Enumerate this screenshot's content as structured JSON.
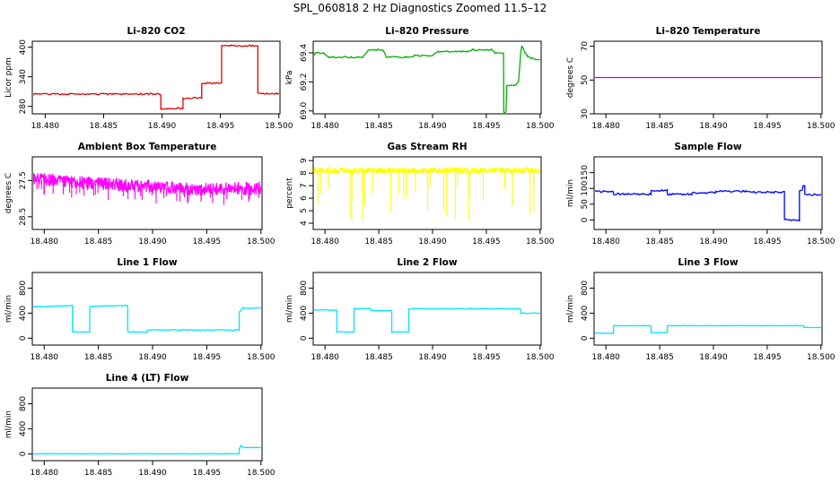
{
  "figure_title": "SPL_060818  2 Hz Diagnostics Zoomed 11.5–12",
  "chart_data": [
    {
      "type": "line",
      "title": "Li–820 CO2",
      "ylabel": "Licor ppm",
      "xlim": [
        18.4789,
        18.5001
      ],
      "ylim": [
        265,
        412
      ],
      "yticks": [
        280,
        340,
        400
      ],
      "color": "#e00000",
      "noise": 1.5,
      "seed": 1,
      "x": [
        18.4789,
        18.4899,
        18.4899,
        18.4918,
        18.4918,
        18.4934,
        18.4934,
        18.4951,
        18.4951,
        18.4982,
        18.4982,
        18.5
      ],
      "y": [
        305,
        305,
        276,
        276,
        297,
        297,
        327,
        327,
        403,
        403,
        306,
        306
      ]
    },
    {
      "type": "line",
      "title": "Li–820 Pressure",
      "ylabel": "kPa",
      "xlim": [
        18.4789,
        18.5001
      ],
      "ylim": [
        68.98,
        69.48
      ],
      "yticks": [
        69.0,
        69.2,
        69.4
      ],
      "tick_decimals": 1,
      "color": "#00b000",
      "noise": 0.005,
      "seed": 2,
      "x": [
        18.4789,
        18.4791,
        18.4799,
        18.4803,
        18.4835,
        18.484,
        18.4854,
        18.4857,
        18.4875,
        18.4883,
        18.49,
        18.4905,
        18.4933,
        18.4937,
        18.4955,
        18.4958,
        18.4966,
        18.49663,
        18.49683,
        18.4969,
        18.4978,
        18.498,
        18.4982,
        18.4983,
        18.4986,
        18.4988,
        18.4992,
        18.5
      ],
      "y": [
        69.38,
        69.4,
        69.4,
        69.37,
        69.37,
        69.42,
        69.42,
        69.37,
        69.37,
        69.38,
        69.38,
        69.41,
        69.41,
        69.42,
        69.42,
        69.4,
        69.4,
        68.99,
        68.99,
        69.17,
        69.18,
        69.2,
        69.4,
        69.45,
        69.4,
        69.38,
        69.36,
        69.35
      ]
    },
    {
      "type": "line",
      "title": "Li–820 Temperature",
      "ylabel": "degrees C",
      "xlim": [
        18.4789,
        18.5001
      ],
      "ylim": [
        30,
        73
      ],
      "yticks": [
        30,
        50,
        70
      ],
      "color": "#d000d0",
      "noise": 0,
      "seed": 3,
      "x": [
        18.4789,
        18.5
      ],
      "y": [
        51.5,
        51.5
      ]
    },
    {
      "type": "noisy",
      "title": "Ambient Box Temperature",
      "ylabel": "degrees C",
      "xlim": [
        18.4789,
        18.5001
      ],
      "ylim": [
        28.85,
        26.85
      ],
      "yticks": [
        27.5,
        28.5
      ],
      "tick_decimals": 1,
      "color": "#ff00ff",
      "noise": 0.18,
      "seed": 4,
      "spike_amp": 0.45,
      "spike_dir": 1,
      "spike_count": 50,
      "x": [
        18.4789,
        18.486,
        18.494,
        18.5
      ],
      "y": [
        27.45,
        27.6,
        27.75,
        27.7
      ]
    },
    {
      "type": "noisy",
      "title": "Gas Stream RH",
      "ylabel": "percent",
      "xlim": [
        18.4789,
        18.5001
      ],
      "ylim": [
        3.5,
        9.3
      ],
      "yticks": [
        4,
        5,
        6,
        7,
        8,
        9
      ],
      "color": "#ffff00",
      "noise": 0.25,
      "seed": 5,
      "spike_amp": 4.0,
      "spike_dir": -1,
      "spike_count": 30,
      "x": [
        18.4789,
        18.5
      ],
      "y": [
        8.2,
        8.2
      ]
    },
    {
      "type": "line",
      "title": "Sample Flow",
      "ylabel": "ml/min",
      "xlim": [
        18.4789,
        18.5001
      ],
      "ylim": [
        -30,
        200
      ],
      "yticks": [
        0,
        50,
        100,
        150
      ],
      "color": "#0000ff",
      "noise": 3,
      "seed": 6,
      "x": [
        18.4789,
        18.4807,
        18.4807,
        18.4842,
        18.4842,
        18.4857,
        18.4857,
        18.488,
        18.488,
        18.4902,
        18.4902,
        18.493,
        18.493,
        18.4966,
        18.4966,
        18.498,
        18.498,
        18.4983,
        18.4983,
        18.4985,
        18.4985,
        18.5
      ],
      "y": [
        90,
        90,
        82,
        82,
        93,
        93,
        81,
        81,
        86,
        86,
        91,
        91,
        88,
        88,
        0,
        0,
        95,
        95,
        108,
        108,
        80,
        80
      ]
    },
    {
      "type": "line",
      "title": "Line 1 Flow",
      "ylabel": "ml/min",
      "xlim": [
        18.4789,
        18.5001
      ],
      "ylim": [
        -110,
        1050
      ],
      "yticks": [
        0,
        400,
        800
      ],
      "color": "#00e5ff",
      "noise": 8,
      "seed": 7,
      "x": [
        18.4789,
        18.4826,
        18.4826,
        18.4842,
        18.4842,
        18.4877,
        18.4877,
        18.4895,
        18.4895,
        18.498,
        18.498,
        18.4983,
        18.5
      ],
      "y": [
        500,
        520,
        100,
        100,
        510,
        520,
        100,
        100,
        130,
        130,
        420,
        480,
        480
      ]
    },
    {
      "type": "line",
      "title": "Line 2 Flow",
      "ylabel": "ml/min",
      "xlim": [
        18.4789,
        18.5001
      ],
      "ylim": [
        -110,
        1050
      ],
      "yticks": [
        0,
        400,
        800
      ],
      "color": "#00e5ff",
      "noise": 6,
      "seed": 8,
      "x": [
        18.4789,
        18.4811,
        18.4811,
        18.4827,
        18.4827,
        18.4843,
        18.4843,
        18.4862,
        18.4862,
        18.4878,
        18.4878,
        18.4982,
        18.4982,
        18.5
      ],
      "y": [
        450,
        450,
        100,
        100,
        470,
        470,
        440,
        440,
        100,
        100,
        470,
        470,
        400,
        400
      ]
    },
    {
      "type": "line",
      "title": "Line 3 Flow",
      "ylabel": "ml/min",
      "xlim": [
        18.4789,
        18.5001
      ],
      "ylim": [
        -110,
        1050
      ],
      "yticks": [
        0,
        400,
        800
      ],
      "color": "#00e5ff",
      "noise": 3,
      "seed": 9,
      "x": [
        18.4789,
        18.4807,
        18.4807,
        18.4842,
        18.4842,
        18.4857,
        18.4857,
        18.4984,
        18.4984,
        18.5
      ],
      "y": [
        80,
        80,
        200,
        200,
        90,
        90,
        200,
        200,
        170,
        170
      ]
    },
    {
      "type": "line",
      "title": "Line 4 (LT) Flow",
      "ylabel": "ml/min",
      "xlim": [
        18.4789,
        18.5001
      ],
      "ylim": [
        -110,
        1050
      ],
      "yticks": [
        0,
        400,
        800
      ],
      "color": "#00e5ff",
      "noise": 2,
      "seed": 10,
      "x": [
        18.4789,
        18.498,
        18.498,
        18.4982,
        18.4983,
        18.5
      ],
      "y": [
        0,
        0,
        80,
        140,
        100,
        100
      ]
    }
  ],
  "x_tick_labels": [
    "18.480",
    "18.485",
    "18.490",
    "18.495",
    "18.500"
  ]
}
